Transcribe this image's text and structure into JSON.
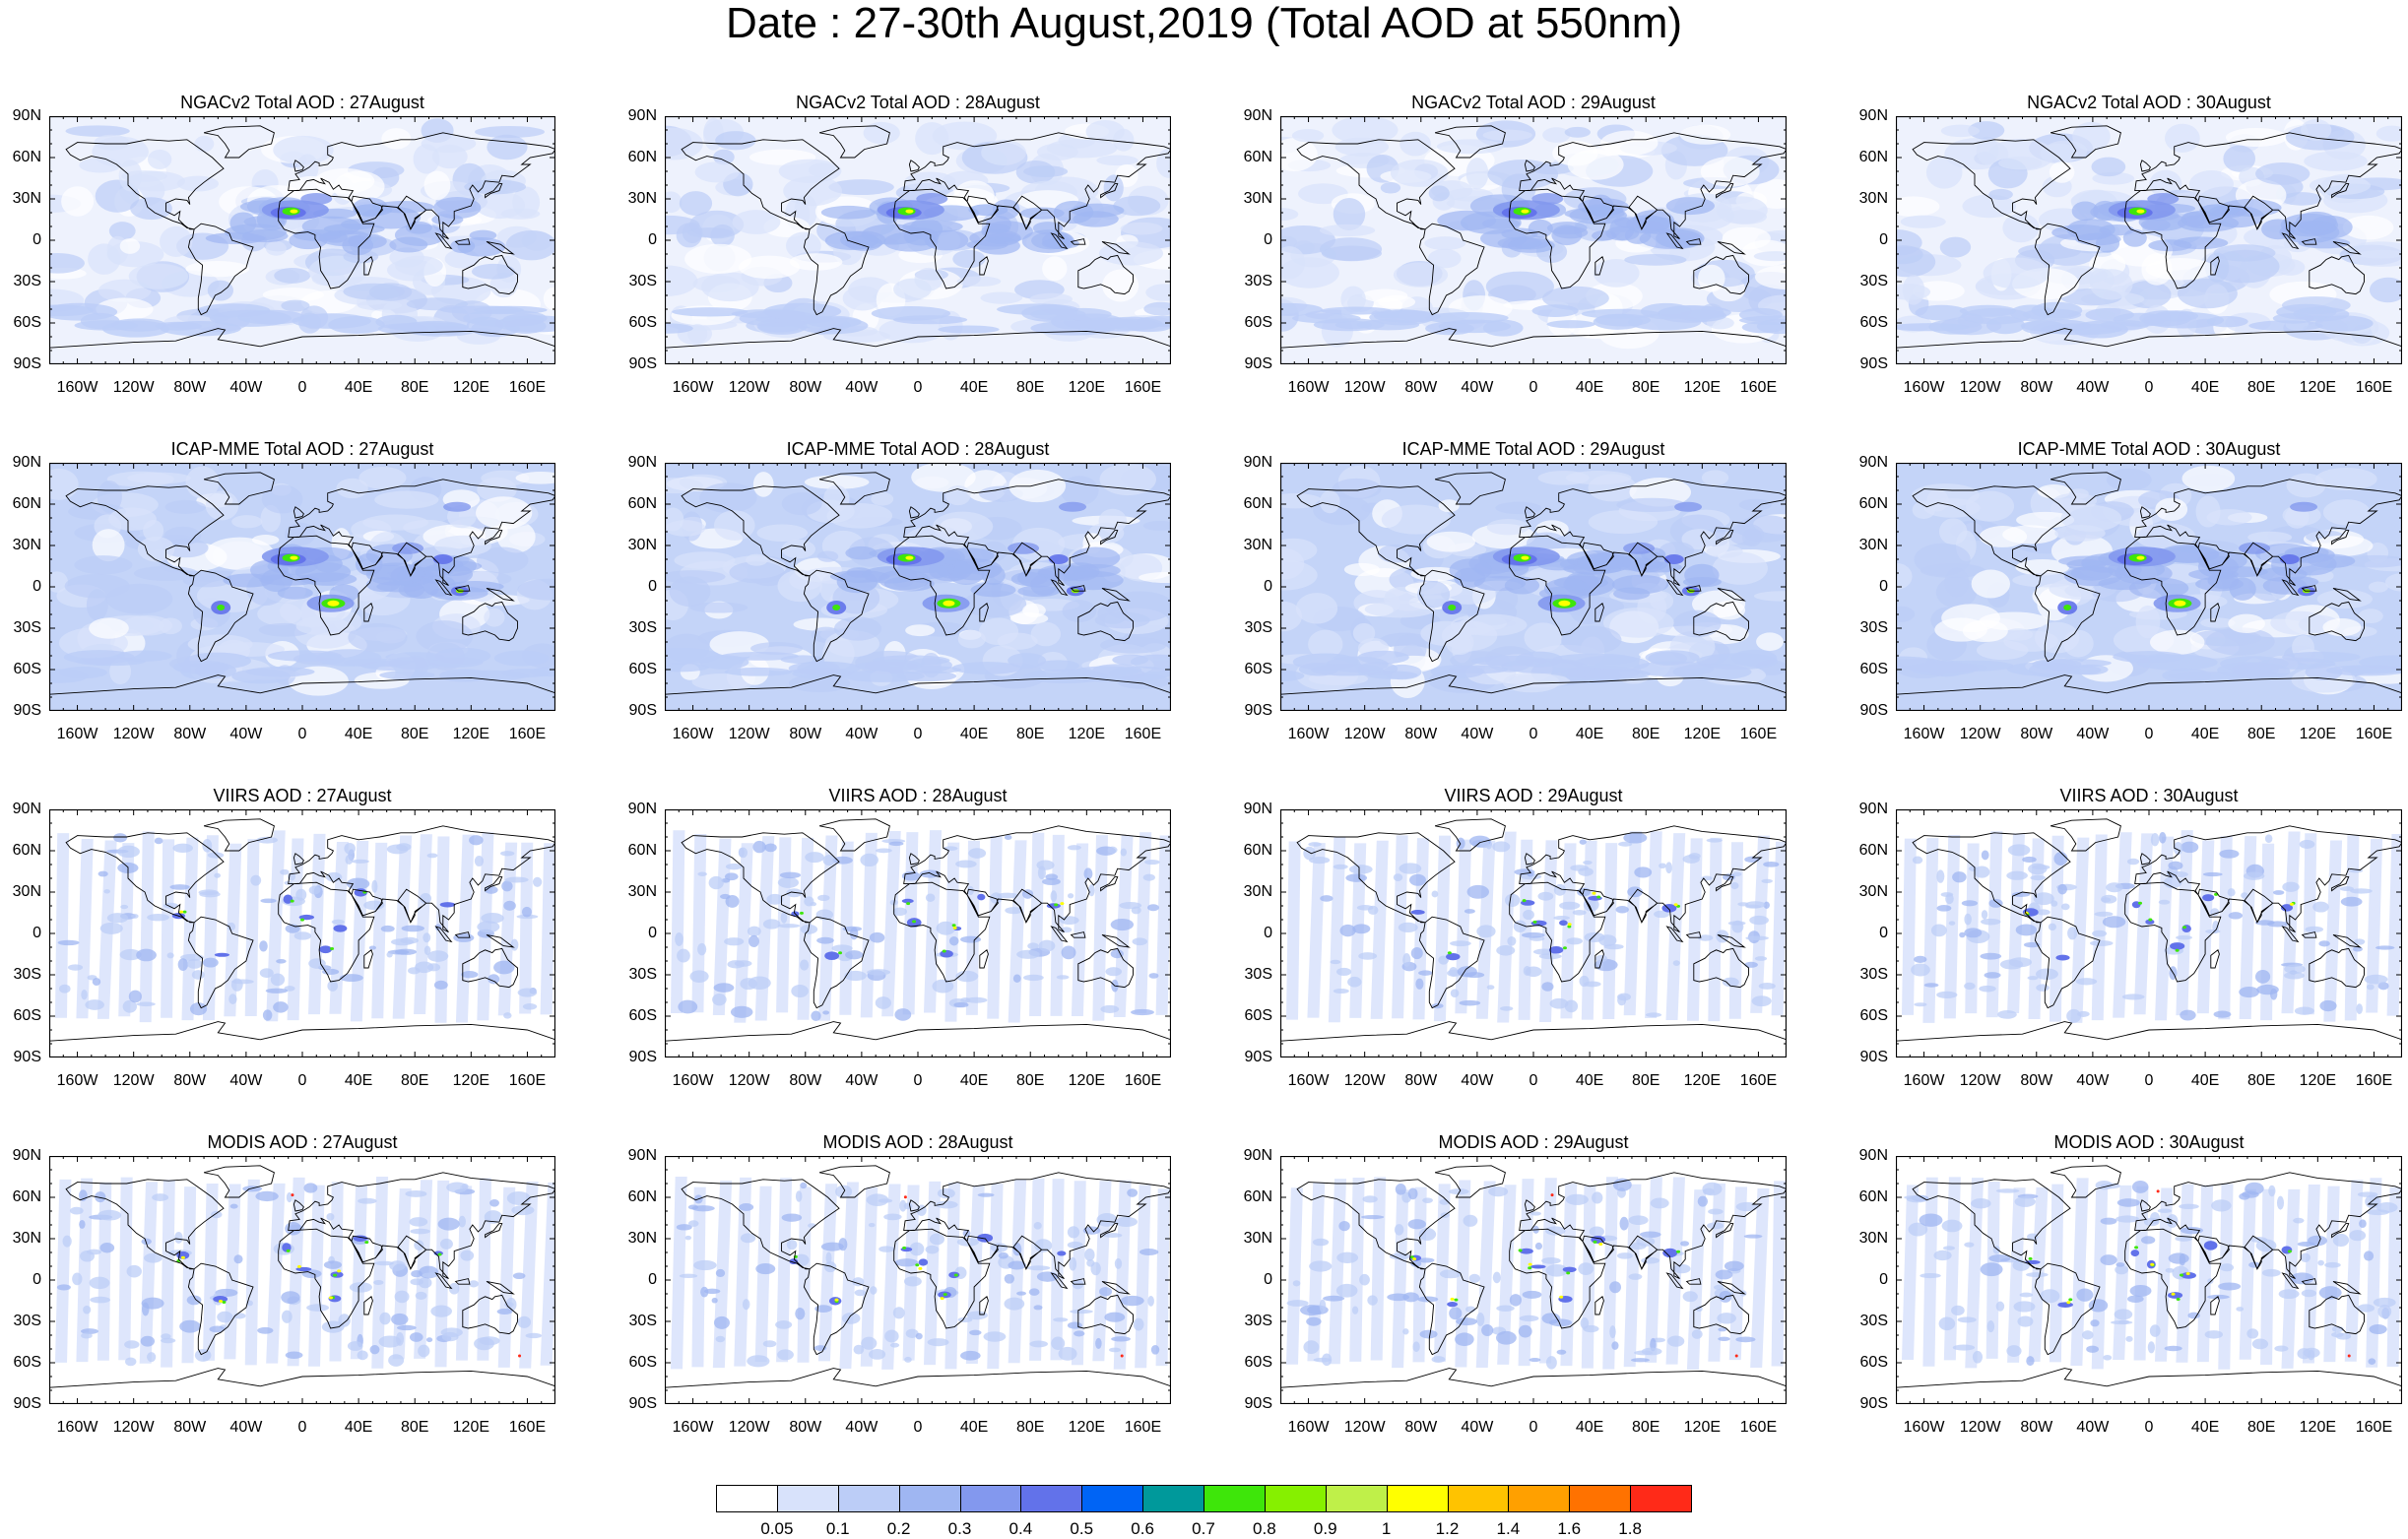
{
  "title": "Date : 27-30th August,2019 (Total AOD at 550nm)",
  "rows": [
    {
      "label": "NGACv2 Total AOD",
      "style": "model-ngac"
    },
    {
      "label": "ICAP-MME Total AOD",
      "style": "model-icap"
    },
    {
      "label": "VIIRS AOD",
      "style": "satellite-viirs"
    },
    {
      "label": "MODIS AOD",
      "style": "satellite-modis"
    }
  ],
  "days": [
    "27August",
    "28August",
    "29August",
    "30August"
  ],
  "panel_titles": [
    [
      "NGACv2 Total AOD : 27August",
      "NGACv2 Total AOD : 28August",
      "NGACv2 Total AOD : 29August",
      "NGACv2 Total AOD : 30August"
    ],
    [
      "ICAP-MME Total AOD : 27August",
      "ICAP-MME Total AOD : 28August",
      "ICAP-MME Total AOD : 29August",
      "ICAP-MME Total AOD : 30August"
    ],
    [
      "VIIRS AOD : 27August",
      "VIIRS AOD : 28August",
      "VIIRS AOD : 29August",
      "VIIRS AOD : 30August"
    ],
    [
      "MODIS AOD : 27August",
      "MODIS AOD : 28August",
      "MODIS AOD : 29August",
      "MODIS AOD : 30August"
    ]
  ],
  "lat_ticks": [
    "90N",
    "60N",
    "30N",
    "0",
    "30S",
    "60S",
    "90S"
  ],
  "lon_ticks": [
    "160W",
    "120W",
    "80W",
    "40W",
    "0",
    "40E",
    "80E",
    "120E",
    "160E"
  ],
  "lat_tick_values": [
    90,
    60,
    30,
    0,
    -30,
    -60,
    -90
  ],
  "lon_tick_values": [
    -160,
    -120,
    -80,
    -40,
    0,
    40,
    80,
    120,
    160
  ],
  "colorbar": {
    "labels": [
      "0.05",
      "0.1",
      "0.2",
      "0.3",
      "0.4",
      "0.5",
      "0.6",
      "0.7",
      "0.8",
      "0.9",
      "1",
      "1.2",
      "1.4",
      "1.6",
      "1.8"
    ],
    "colors": [
      "#ffffff",
      "#d8e2fb",
      "#bccdf7",
      "#9fb6f2",
      "#8398ee",
      "#6272ea",
      "#0064f5",
      "#00999b",
      "#3ee60a",
      "#86f000",
      "#bff049",
      "#ffff00",
      "#ffc300",
      "#ffa000",
      "#ff7200",
      "#ff2a18"
    ]
  },
  "colors": {
    "ocean_background_model": "#cfdcfa",
    "hotspot_dust": "#3ee60a",
    "hotspot_smoke": "#ffff00"
  }
}
